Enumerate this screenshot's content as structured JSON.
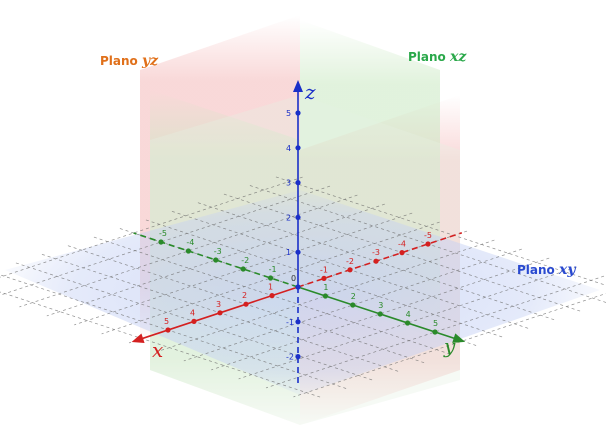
{
  "labels": {
    "plane_yz_prefix": "Plano ",
    "plane_yz_math": "yz",
    "plane_xz_prefix": "Plano ",
    "plane_xz_math": "xz",
    "plane_xy_prefix": "Plano ",
    "plane_xy_math": "xy",
    "axis_x": "x",
    "axis_y": "y",
    "axis_z": "z",
    "origin": "0"
  },
  "ticks": {
    "x": [
      -5,
      -4,
      -3,
      -2,
      -1,
      1,
      2,
      3,
      4,
      5
    ],
    "y": [
      -5,
      -4,
      -3,
      -2,
      -1,
      1,
      2,
      3,
      4,
      5
    ],
    "z": [
      -2,
      -1,
      1,
      2,
      3,
      4,
      5
    ]
  },
  "colors": {
    "x_axis": "#d42020",
    "y_axis": "#2a8a2a",
    "z_axis": "#1a2fc8",
    "plane_yz_label": "#e0701a",
    "plane_xz_label": "#2aa84a",
    "plane_xy_label": "#2a4ad0",
    "plane_red": "#f4b8b8",
    "plane_green": "#c8e8c0",
    "plane_blue": "#c4d0f4"
  }
}
